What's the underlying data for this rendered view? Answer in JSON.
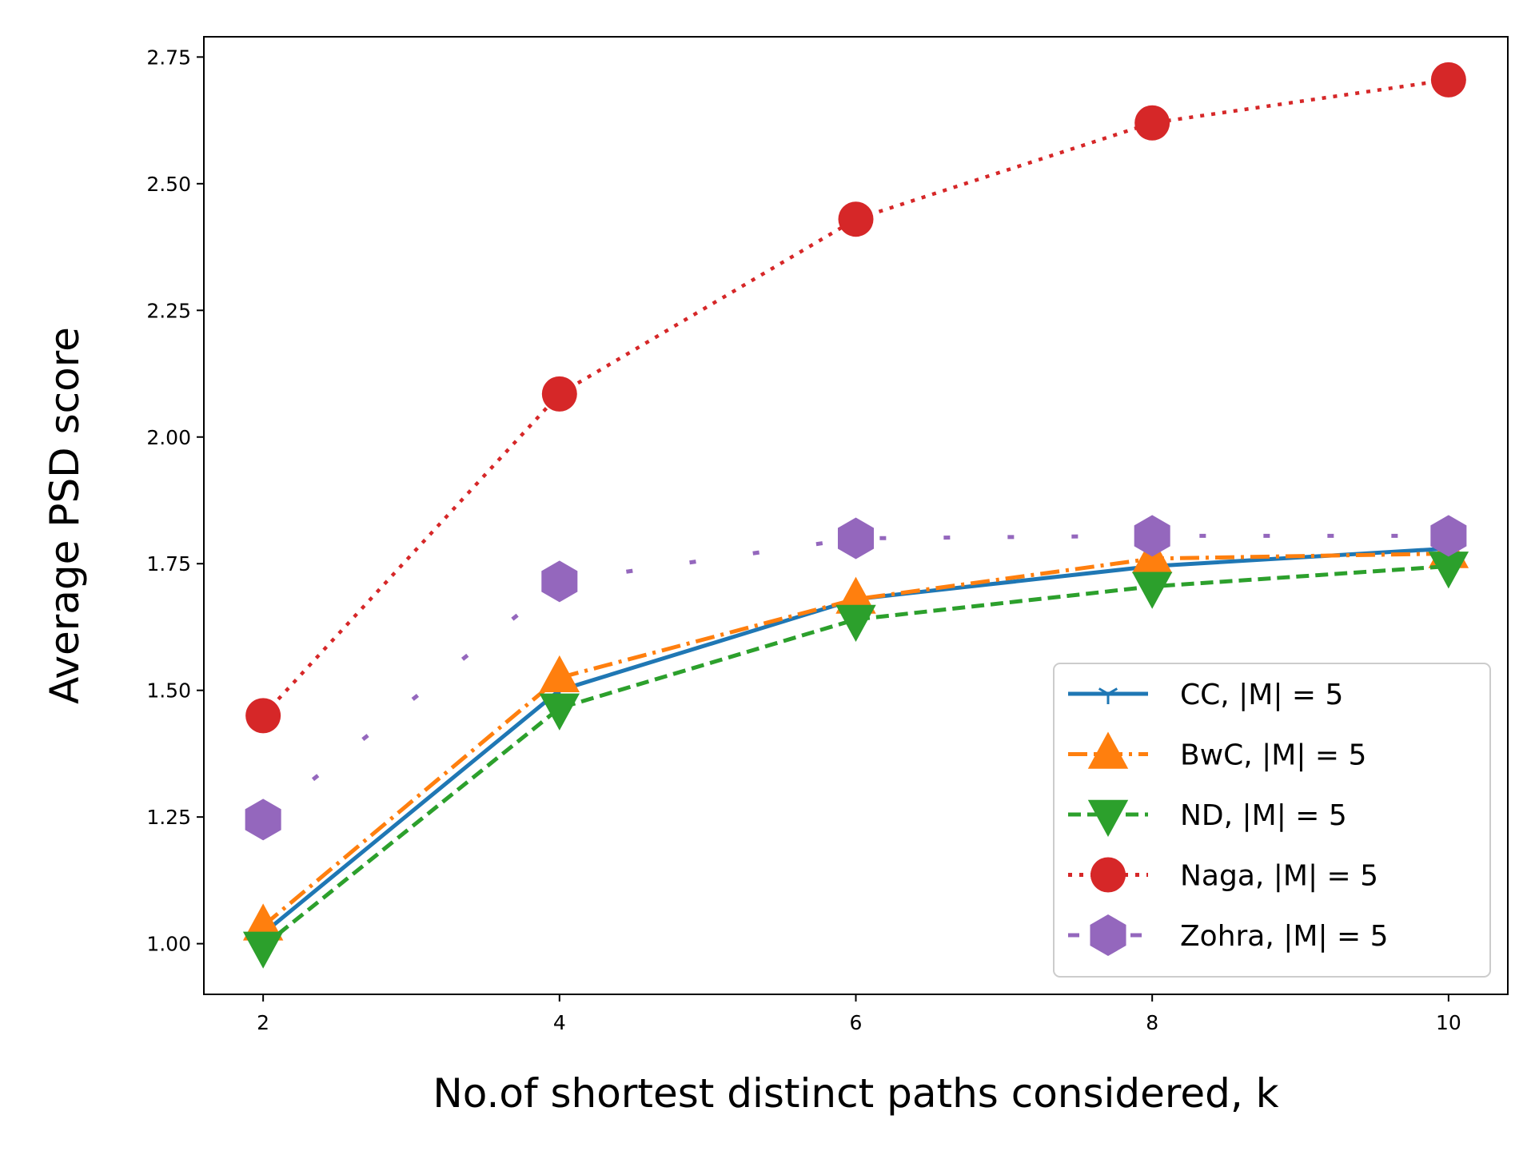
{
  "chart_data": {
    "type": "line",
    "title": "",
    "xlabel": "No.of shortest distinct paths considered, k",
    "ylabel": "Average PSD score",
    "x": [
      2,
      4,
      6,
      8,
      10
    ],
    "xticks": [
      2,
      4,
      6,
      8,
      10
    ],
    "yticks": [
      1.0,
      1.25,
      1.5,
      1.75,
      2.0,
      2.25,
      2.5,
      2.75
    ],
    "ytick_labels": [
      "1.00",
      "1.25",
      "1.50",
      "1.75",
      "2.00",
      "2.25",
      "2.50",
      "2.75"
    ],
    "xlim": [
      1.6,
      10.4
    ],
    "ylim": [
      0.9,
      2.79
    ],
    "grid": false,
    "legend_position": "lower-right",
    "series": [
      {
        "name": "CC, |M| = 5",
        "color": "#1f77b4",
        "linestyle": "solid",
        "marker": "tri-down",
        "values": [
          1.02,
          1.5,
          1.68,
          1.745,
          1.78
        ]
      },
      {
        "name": "BwC, |M| = 5",
        "color": "#ff7f0e",
        "linestyle": "dashdot",
        "marker": "triangle-up",
        "values": [
          1.035,
          1.525,
          1.68,
          1.76,
          1.77
        ]
      },
      {
        "name": "ND, |M| = 5",
        "color": "#2ca02c",
        "linestyle": "dashed",
        "marker": "triangle-down",
        "values": [
          0.995,
          1.465,
          1.64,
          1.705,
          1.745
        ]
      },
      {
        "name": "Naga, |M| = 5",
        "color": "#d62728",
        "linestyle": "dotted",
        "marker": "circle",
        "values": [
          1.45,
          2.085,
          2.43,
          2.62,
          2.705
        ]
      },
      {
        "name": "Zohra, |M| = 5",
        "color": "#9467bd",
        "linestyle": "loosedash",
        "marker": "hexagon",
        "values": [
          1.245,
          1.715,
          1.8,
          1.805,
          1.805
        ]
      }
    ]
  }
}
